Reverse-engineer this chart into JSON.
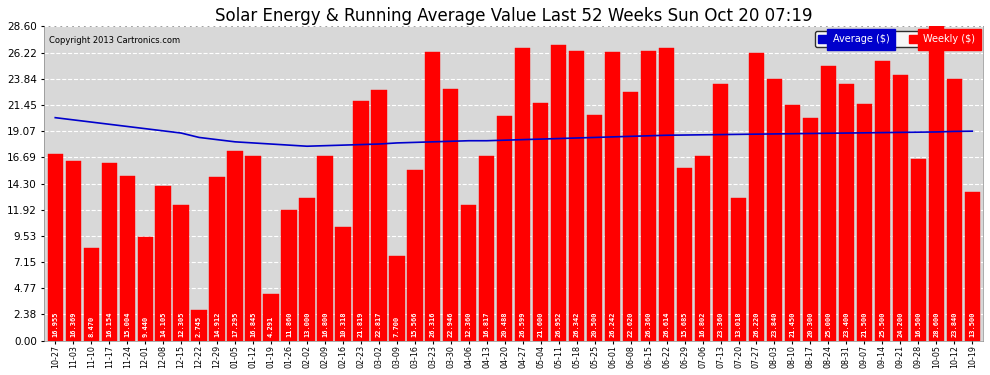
{
  "title": "Solar Energy & Running Average Value Last 52 Weeks Sun Oct 20 07:19",
  "copyright": "Copyright 2013 Cartronics.com",
  "categories": [
    "10-27",
    "11-03",
    "11-10",
    "11-17",
    "11-24",
    "12-01",
    "12-08",
    "12-15",
    "12-22",
    "12-29",
    "01-05",
    "01-12",
    "01-19",
    "01-26",
    "02-02",
    "02-09",
    "02-16",
    "02-23",
    "03-02",
    "03-09",
    "03-16",
    "03-23",
    "03-30",
    "04-06",
    "04-13",
    "04-20",
    "04-27",
    "05-04",
    "05-11",
    "05-18",
    "05-25",
    "06-01",
    "06-08",
    "06-15",
    "06-22",
    "06-29",
    "07-06",
    "07-13",
    "07-20",
    "07-27",
    "08-03",
    "08-10",
    "08-17",
    "08-24",
    "08-31",
    "09-07",
    "09-14",
    "09-21",
    "09-28",
    "10-05",
    "10-12",
    "10-19"
  ],
  "bar_values": [
    16.955,
    16.369,
    8.47,
    16.154,
    15.004,
    9.44,
    14.105,
    12.305,
    2.745,
    14.912,
    17.295,
    16.845,
    4.291,
    11.86,
    13.0,
    16.8,
    10.318,
    21.819,
    22.817,
    7.7,
    15.566,
    26.316,
    22.946,
    12.36,
    16.817,
    20.488,
    26.599,
    21.6,
    26.952,
    26.342,
    20.5,
    26.242,
    22.62,
    26.36,
    26.614,
    15.685,
    16.802,
    23.36,
    13.018,
    26.22,
    23.84,
    21.45,
    20.3,
    25.0,
    23.4,
    21.5,
    25.5,
    24.2,
    16.5,
    28.6,
    23.84,
    13.5
  ],
  "avg_values": [
    20.3,
    20.1,
    19.9,
    19.7,
    19.5,
    19.3,
    19.1,
    18.9,
    18.5,
    18.3,
    18.1,
    18.0,
    17.9,
    17.8,
    17.7,
    17.75,
    17.8,
    17.85,
    17.9,
    18.0,
    18.05,
    18.1,
    18.15,
    18.2,
    18.2,
    18.25,
    18.3,
    18.35,
    18.4,
    18.45,
    18.5,
    18.55,
    18.6,
    18.65,
    18.7,
    18.72,
    18.74,
    18.76,
    18.78,
    18.8,
    18.82,
    18.84,
    18.86,
    18.88,
    18.9,
    18.92,
    18.94,
    18.96,
    18.98,
    19.0,
    19.05,
    19.07
  ],
  "bar_color": "#ff0000",
  "avg_line_color": "#0000cc",
  "background_color": "#ffffff",
  "plot_bg_color": "#d8d8d8",
  "grid_color": "#ffffff",
  "title_fontsize": 12,
  "bar_label_fontsize": 5.0,
  "ytick_labels": [
    "0.00",
    "2.38",
    "4.77",
    "7.15",
    "9.53",
    "11.92",
    "14.30",
    "16.69",
    "19.07",
    "21.45",
    "23.84",
    "26.22",
    "28.60"
  ],
  "ytick_values": [
    0.0,
    2.38,
    4.77,
    7.15,
    9.53,
    11.92,
    14.3,
    16.69,
    19.07,
    21.45,
    23.84,
    26.22,
    28.6
  ],
  "ylim": [
    0,
    28.6
  ],
  "legend_avg_label": "Average ($)",
  "legend_weekly_label": "Weekly ($)"
}
